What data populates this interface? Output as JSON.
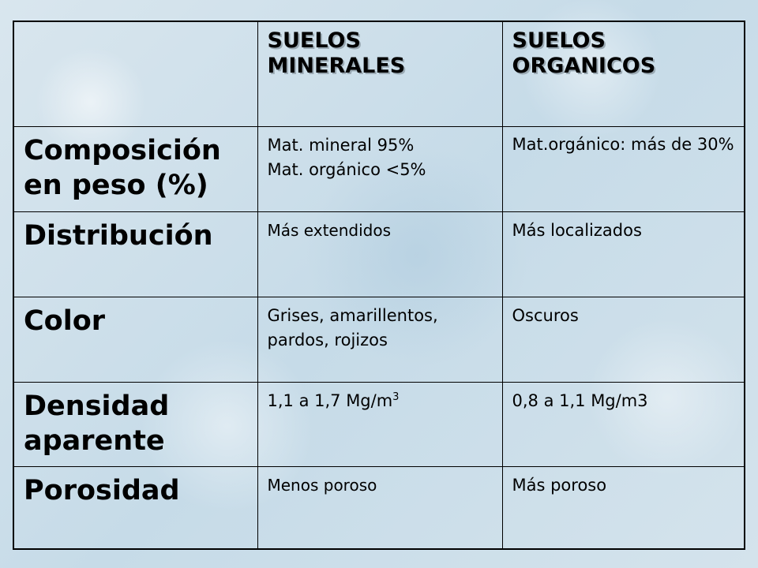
{
  "table": {
    "header": {
      "corner": "",
      "col1": "SUELOS MINERALES",
      "col2": "SUELOS ORGANICOS"
    },
    "rows": [
      {
        "label": "Composición en peso (%)",
        "mineral_line1": "Mat. mineral 95%",
        "mineral_line2": "Mat. orgánico <5%",
        "organic": "Mat.orgánico: más de 30%"
      },
      {
        "label": "Distribución",
        "mineral": "Más extendidos",
        "organic": "Más localizados"
      },
      {
        "label": "Color",
        "mineral": "Grises, amarillentos, pardos, rojizos",
        "organic": "Oscuros"
      },
      {
        "label": "Densidad aparente",
        "mineral_base": "1,1 a 1,7 Mg/m",
        "mineral_exp": "3",
        "organic": "0,8 a 1,1 Mg/m3"
      },
      {
        "label": "Porosidad",
        "mineral": "Menos poroso",
        "organic": "Más poroso"
      }
    ]
  },
  "colors": {
    "label_text": "#0f1f45",
    "background": "#cfe0ea",
    "border": "#000000"
  }
}
